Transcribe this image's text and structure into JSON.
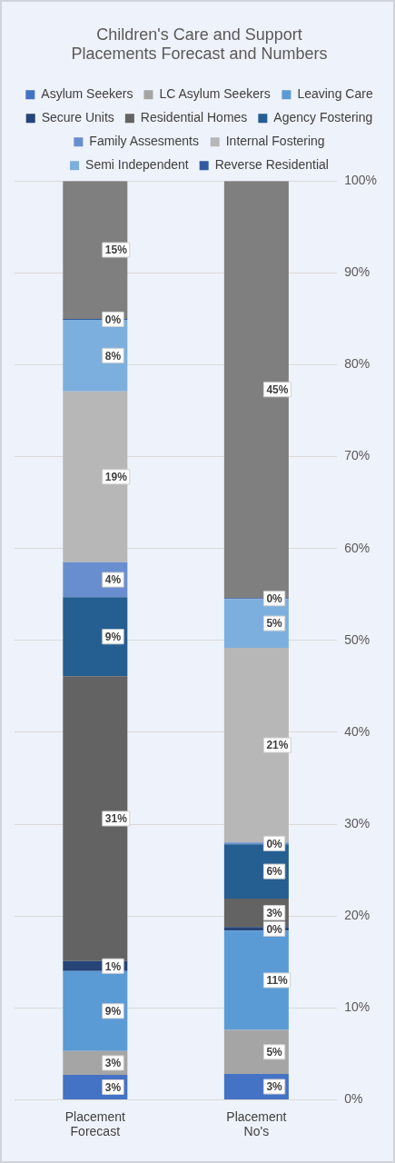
{
  "chart_data": {
    "type": "bar",
    "stacked": true,
    "title": "Children's Care and Support\nPlacements Forecast and Numbers",
    "categories": [
      "Placement Forecast",
      "Placement No's"
    ],
    "series": [
      {
        "name": "Asylum Seekers",
        "color": "#4472c4",
        "values": [
          2.7,
          2.8
        ],
        "value_labels": [
          "3%",
          "3%"
        ]
      },
      {
        "name": "LC Asylum Seekers",
        "color": "#a5a5a5",
        "values": [
          2.6,
          4.8
        ],
        "value_labels": [
          "3%",
          "5%"
        ]
      },
      {
        "name": "Leaving Care",
        "color": "#5b9bd5",
        "values": [
          8.7,
          10.8
        ],
        "value_labels": [
          "9%",
          "11%"
        ]
      },
      {
        "name": "Secure Units",
        "color": "#264478",
        "values": [
          1.1,
          0.4
        ],
        "value_labels": [
          "1%",
          "0%"
        ]
      },
      {
        "name": "Residential Homes",
        "color": "#636363",
        "values": [
          31.0,
          3.1
        ],
        "value_labels": [
          "31%",
          "3%"
        ]
      },
      {
        "name": "Agency Fostering",
        "color": "#255e91",
        "values": [
          8.6,
          5.9
        ],
        "value_labels": [
          "9%",
          "6%"
        ]
      },
      {
        "name": "Family Assesments",
        "color": "#698ed0",
        "values": [
          3.8,
          0.2
        ],
        "value_labels": [
          "4%",
          "0%"
        ]
      },
      {
        "name": "Internal Fostering",
        "color": "#b7b7b7",
        "values": [
          18.6,
          21.2
        ],
        "value_labels": [
          "19%",
          "21%"
        ]
      },
      {
        "name": "Semi Independent",
        "color": "#7cafdd",
        "values": [
          7.8,
          5.3
        ],
        "value_labels": [
          "8%",
          "5%"
        ]
      },
      {
        "name": "Reverse Residential",
        "color": "#335aa1",
        "values": [
          0.1,
          0.1
        ],
        "value_labels": [
          "0%",
          "0%"
        ]
      },
      {
        "color": "#7f7f7f",
        "values": [
          15.0,
          45.4
        ],
        "value_labels": [
          "15%",
          "45%"
        ]
      }
    ],
    "ylim": [
      0,
      100
    ],
    "yticks": [
      {
        "value": 0,
        "label": "0%"
      },
      {
        "value": 10,
        "label": "10%"
      },
      {
        "value": 20,
        "label": "20%"
      },
      {
        "value": 30,
        "label": "30%"
      },
      {
        "value": 40,
        "label": "40%"
      },
      {
        "value": 50,
        "label": "50%"
      },
      {
        "value": 60,
        "label": "60%"
      },
      {
        "value": 70,
        "label": "70%"
      },
      {
        "value": 80,
        "label": "80%"
      },
      {
        "value": 90,
        "label": "90%"
      },
      {
        "value": 100,
        "label": "100%"
      }
    ],
    "grid": "y",
    "legend": "top"
  }
}
